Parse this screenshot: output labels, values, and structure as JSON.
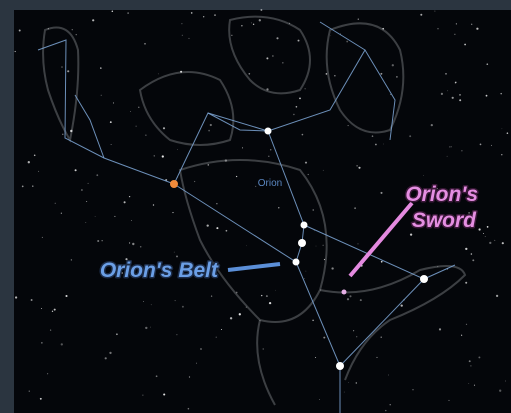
{
  "labels": {
    "constellation": "Orion",
    "belt": "Orion's Belt",
    "sword": [
      "Orion's",
      "Sword"
    ]
  }
}
